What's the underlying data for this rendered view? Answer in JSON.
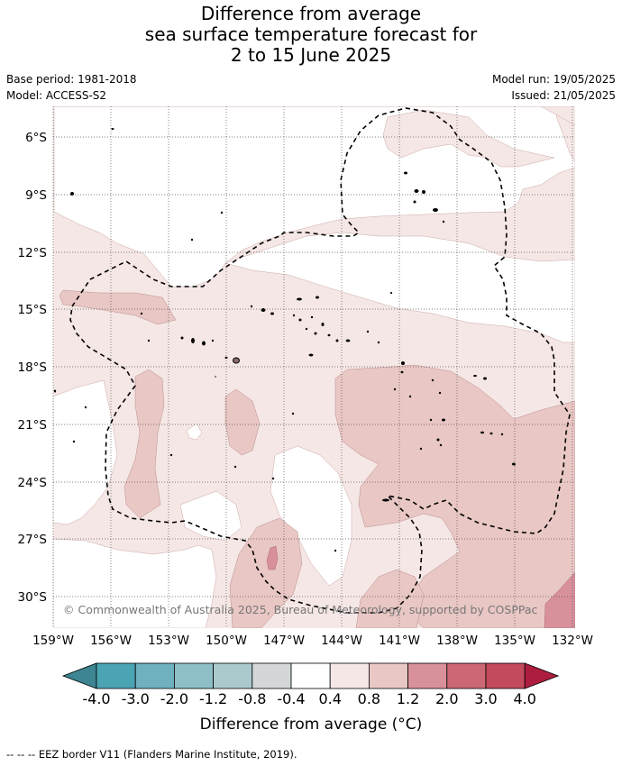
{
  "title": {
    "line1": "Difference from average",
    "line2": "sea surface temperature forecast for",
    "line3": "2 to 15 June 2025"
  },
  "meta": {
    "base_period": "Base period: 1981-2018",
    "model": "Model: ACCESS-S2",
    "model_run": "Model run: 19/05/2025",
    "issued": "Issued: 21/05/2025"
  },
  "map": {
    "lat_labels": [
      "6°S",
      "9°S",
      "12°S",
      "15°S",
      "18°S",
      "21°S",
      "24°S",
      "27°S",
      "30°S"
    ],
    "lon_labels": [
      "159°W",
      "156°W",
      "153°W",
      "150°W",
      "147°W",
      "144°W",
      "141°W",
      "138°W",
      "135°W",
      "132°W"
    ],
    "copyright": "© Commonwealth of Australia 2025, Bureau of Meteorology, supported by COSPPac"
  },
  "colorbar": {
    "colors": [
      "#3d8592",
      "#4ba4b3",
      "#6fb1bf",
      "#8ebec8",
      "#aac9cd",
      "#d3d7d8",
      "#ffffff",
      "#f5e7e6",
      "#e9c7c4",
      "#d8909a",
      "#cc6875",
      "#c24a5c",
      "#ad1d40"
    ],
    "labels": [
      "-4.0",
      "-3.0",
      "-2.0",
      "-1.2",
      "-0.8",
      "-0.4",
      "0.4",
      "0.8",
      "1.2",
      "2.0",
      "3.0",
      "4.0"
    ],
    "title": "Difference from average (°C)"
  },
  "footer": "--  --  -- EEZ border V11 (Flanders Marine Institute, 2019)."
}
